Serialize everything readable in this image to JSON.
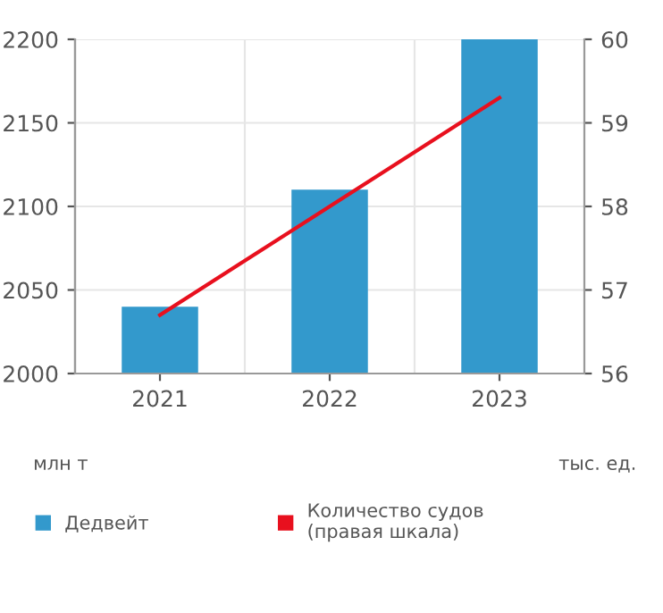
{
  "chart_data": {
    "type": "bar",
    "categories": [
      "2021",
      "2022",
      "2023"
    ],
    "series": [
      {
        "name": "Дедвейт",
        "color": "#3399cc",
        "values": [
          2040,
          2110,
          2200
        ]
      },
      {
        "name": "Количество судов\n(правая шкала)",
        "color": "#e8101e",
        "type": "line",
        "axis": "y2",
        "values": [
          56.7,
          58.0,
          59.3
        ]
      }
    ],
    "ylabel": "млн т",
    "y2label": "тыс. ед.",
    "ylim": [
      2000,
      2200
    ],
    "yticks": [
      2000,
      2050,
      2100,
      2150,
      2200
    ],
    "y2lim": [
      56,
      60
    ],
    "y2ticks": [
      56,
      57,
      58,
      59,
      60
    ],
    "grid": true,
    "legend": "bottom",
    "marker": "none"
  }
}
